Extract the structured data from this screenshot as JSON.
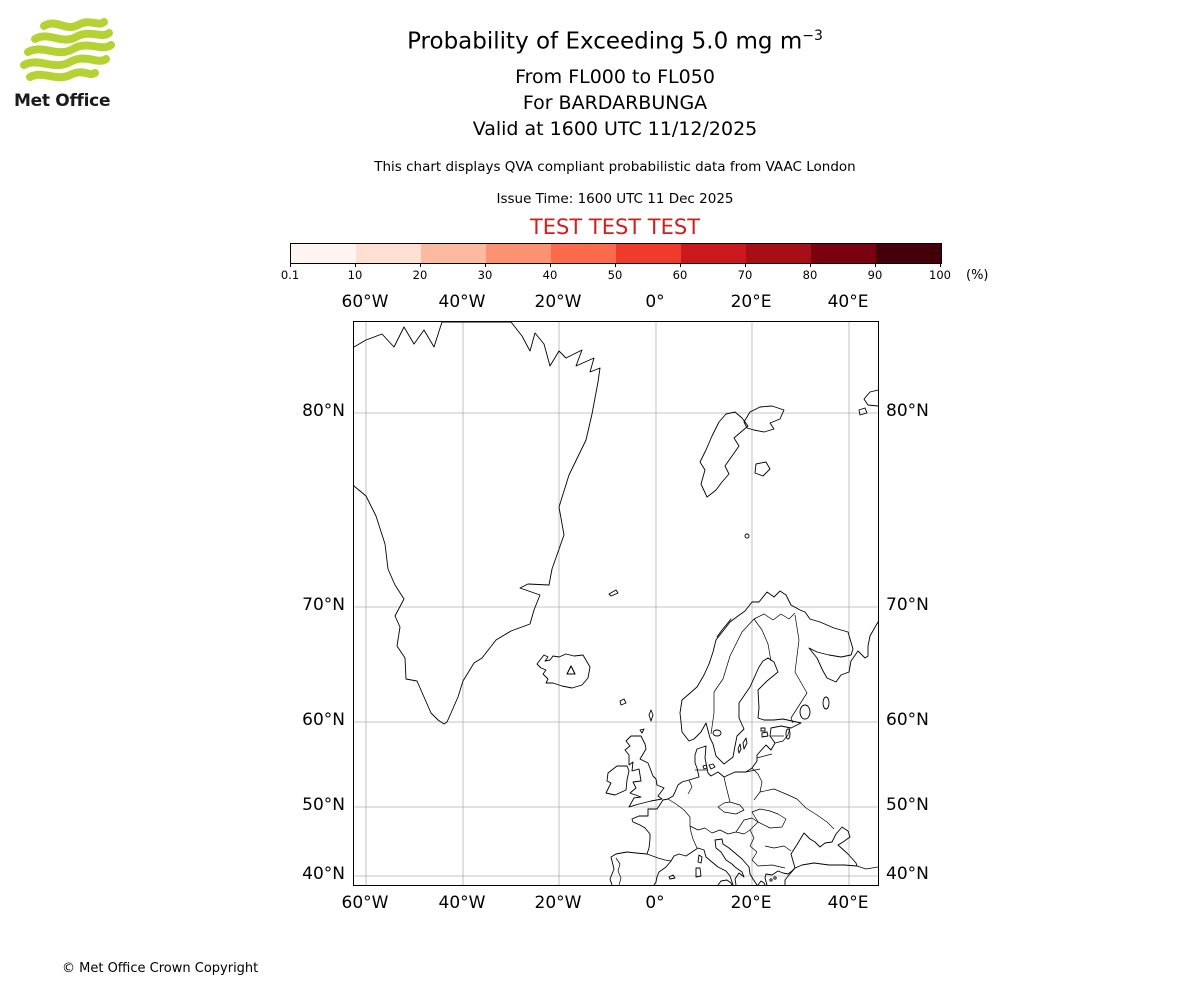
{
  "colors": {
    "logo_green": "#b4d233",
    "test_red": "#d01f1f",
    "coastline": "#000000",
    "gridline": "#b0b0b0"
  },
  "logo": {
    "text": "Met Office"
  },
  "header": {
    "title_main": "Probability of Exceeding 5.0 mg m",
    "title_sup": "−3",
    "subtitle_flight_levels": "From FL000 to FL050",
    "subtitle_volcano": "For BARDARBUNGA",
    "subtitle_valid": "Valid at 1600 UTC 11/12/2025",
    "qva_note": "This chart displays QVA compliant probabilistic data from VAAC London",
    "issue_time": "Issue Time: 1600 UTC 11 Dec 2025",
    "test_banner": "TEST TEST TEST"
  },
  "colorbar": {
    "unit": "(%)",
    "ticks": [
      "0.1",
      "10",
      "20",
      "30",
      "40",
      "50",
      "60",
      "70",
      "80",
      "90",
      "100"
    ],
    "colors": [
      "#fff5f0",
      "#fee0d2",
      "#fcbba1",
      "#fc9272",
      "#fb6a4a",
      "#ef3b2c",
      "#cb181d",
      "#a50f15",
      "#7a010f",
      "#43000a"
    ]
  },
  "map": {
    "lon_labels": [
      "60°W",
      "40°W",
      "20°W",
      "0°",
      "20°E",
      "40°E"
    ],
    "lat_labels": [
      "80°N",
      "70°N",
      "60°N",
      "50°N",
      "40°N"
    ]
  },
  "footer": {
    "copyright": "© Met Office Crown Copyright"
  },
  "chart_data": {
    "type": "map",
    "projection": "mercator",
    "lon_range_deg": [
      -62.5,
      46.1
    ],
    "lat_range_deg": [
      38.5,
      82.8
    ],
    "lon_gridlines_deg": [
      -60,
      -40,
      -20,
      0,
      20,
      40
    ],
    "lat_gridlines_deg": [
      80,
      70,
      60,
      50,
      40
    ],
    "colorbar_percent_bounds": [
      0.1,
      10,
      20,
      30,
      40,
      50,
      60,
      70,
      80,
      90,
      100
    ],
    "shaded_probability_regions": [],
    "volcano_marker_location": "Iceland (Bardarbunga)"
  }
}
